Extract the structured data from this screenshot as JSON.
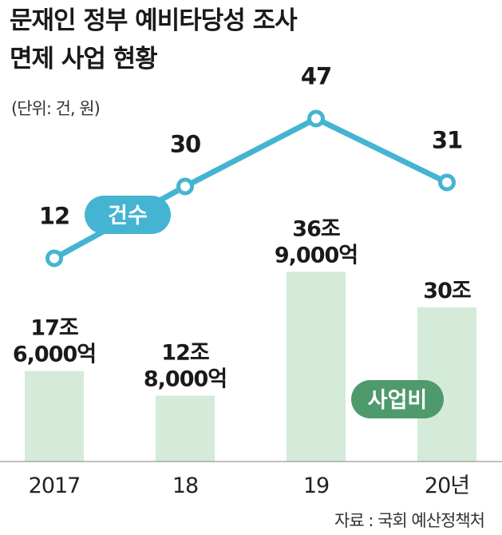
{
  "header": {
    "title_line1": "문재인 정부 예비타당성 조사",
    "title_line2": "면제 사업 현황",
    "unit": "(단위: 건, 원)"
  },
  "source": "자료 : 국회 예산정책처",
  "colors": {
    "bar": "#d3ebd8",
    "line": "#44b4d2",
    "count_pill": "#44b4d2",
    "budget_pill": "#4f9a6c"
  },
  "chart_data": {
    "type": "bar+line",
    "categories": [
      "2017",
      "18",
      "19",
      "20년"
    ],
    "series": [
      {
        "name": "건수",
        "type": "line",
        "values": [
          12,
          30,
          47,
          31
        ],
        "labels": [
          "12",
          "30",
          "47",
          "31"
        ]
      },
      {
        "name": "사업비",
        "type": "bar",
        "values": [
          176000,
          128000,
          369000,
          300000
        ],
        "value_unit": "억원",
        "labels": [
          [
            "17조",
            "6,000억"
          ],
          [
            "12조",
            "8,000억"
          ],
          [
            "36조",
            "9,000억"
          ],
          [
            "30조",
            ""
          ]
        ]
      }
    ],
    "xlabel": "",
    "ylabel": "",
    "grid": false,
    "legend": "inline labels"
  }
}
